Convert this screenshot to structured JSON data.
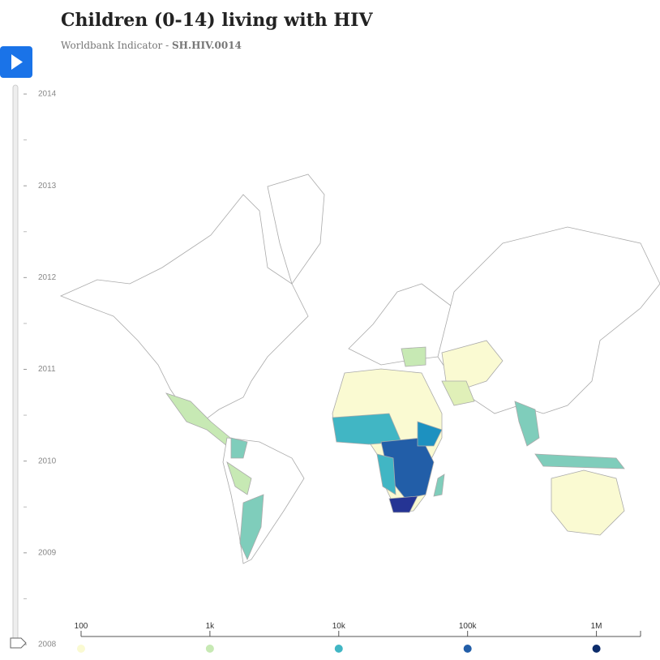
{
  "header": {
    "title": "Children (0-14) living with HIV",
    "subtitle_prefix": "Worldbank Indicator - ",
    "subtitle_code": "SH.HIV.0014"
  },
  "timeline": {
    "years": [
      2014,
      2013,
      2012,
      2011,
      2010,
      2009,
      2008
    ]
  },
  "legend": {
    "scale": "log",
    "xlim": [
      100,
      2200000
    ],
    "ticks": [
      {
        "value": 100,
        "label": "100"
      },
      {
        "value": 1000,
        "label": "1k"
      },
      {
        "value": 10000,
        "label": "10k"
      },
      {
        "value": 100000,
        "label": "100k"
      },
      {
        "value": 1000000,
        "label": "1M"
      }
    ],
    "colors": [
      "#fafad2",
      "#c7e9b4",
      "#41b6c4",
      "#225ea8",
      "#0c2c6b"
    ]
  }
}
